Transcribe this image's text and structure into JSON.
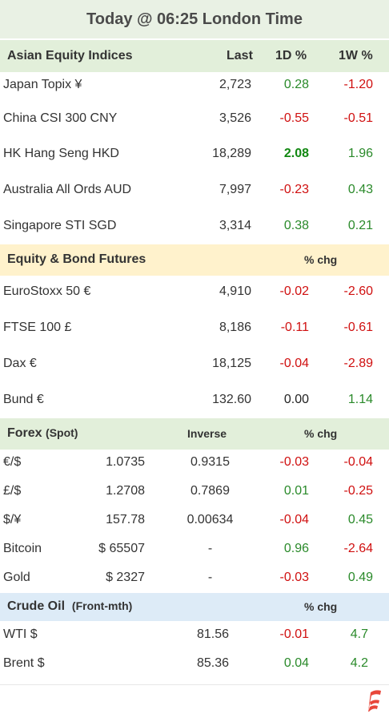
{
  "title": "Today @ 06:25 London Time",
  "asian": {
    "header": {
      "label": "Asian Equity Indices",
      "last": "Last",
      "d1": "1D %",
      "w1": "1W %"
    },
    "rows": [
      {
        "name": "Japan Topix  ¥",
        "last": "2,723",
        "d1": "0.28",
        "w1": "-1.20"
      },
      {
        "name": "China CSI 300 CNY",
        "last": "3,526",
        "d1": "-0.55",
        "w1": "-0.51"
      },
      {
        "name": "HK Hang Seng HKD",
        "last": "18,289",
        "d1": "2.08",
        "w1": "1.96"
      },
      {
        "name": "Australia All Ords AUD",
        "last": "7,997",
        "d1": "-0.23",
        "w1": "0.43"
      },
      {
        "name": "Singapore STI SGD",
        "last": "3,314",
        "d1": "0.38",
        "w1": "0.21"
      }
    ]
  },
  "futures": {
    "header": {
      "label": "Equity & Bond Futures",
      "chg": "% chg"
    },
    "rows": [
      {
        "name": "EuroStoxx 50 €",
        "last": "4,910",
        "d1": "-0.02",
        "w1": "-2.60"
      },
      {
        "name": "FTSE 100  £",
        "last": "8,186",
        "d1": "-0.11",
        "w1": "-0.61"
      },
      {
        "name": "Dax  €",
        "last": "18,125",
        "d1": "-0.04",
        "w1": "-2.89"
      },
      {
        "name": "Bund  €",
        "last": "132.60",
        "d1": "0.00",
        "w1": "1.14"
      }
    ]
  },
  "forex": {
    "header": {
      "label": "Forex",
      "sub": "(Spot)",
      "inverse": "Inverse",
      "chg": "% chg"
    },
    "rows": [
      {
        "name": "€/$",
        "spot": "1.0735",
        "inverse": "0.9315",
        "d1": "-0.03",
        "w1": "-0.04"
      },
      {
        "name": "£/$",
        "spot": "1.2708",
        "inverse": "0.7869",
        "d1": "0.01",
        "w1": "-0.25"
      },
      {
        "name": "$/¥",
        "spot": "157.78",
        "inverse": "0.00634",
        "d1": "-0.04",
        "w1": "0.45"
      },
      {
        "name": "Bitcoin",
        "spot": "$ 65507",
        "inverse": "-",
        "d1": "0.96",
        "w1": "-2.64"
      },
      {
        "name": "Gold",
        "spot": "$ 2327",
        "inverse": "-",
        "d1": "-0.03",
        "w1": "0.49"
      }
    ]
  },
  "crude": {
    "header": {
      "label": "Crude Oil",
      "sub": "(Front-mth)",
      "chg": "% chg"
    },
    "rows": [
      {
        "name": "WTI  $",
        "last": "81.56",
        "d1": "-0.01",
        "w1": "4.7"
      },
      {
        "name": "Brent $",
        "last": "85.36",
        "d1": "0.04",
        "w1": "4.2"
      }
    ]
  },
  "colors": {
    "title_bg": "#e9f1e4",
    "asian_bg": "#e2efda",
    "futures_bg": "#fff2cc",
    "forex_bg": "#e2efda",
    "crude_bg": "#ddebf7",
    "positive": "#2a8a2a",
    "negative": "#d01010",
    "logo": "#e8463a"
  },
  "logo_icon": "flag-logo-icon"
}
